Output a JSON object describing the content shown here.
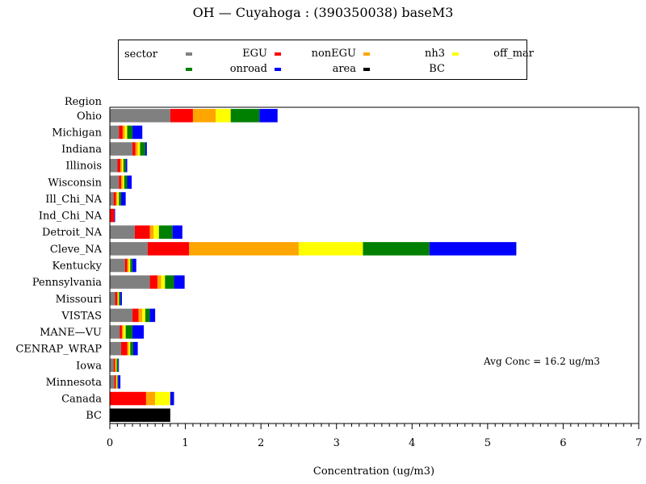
{
  "chart_data": {
    "type": "bar",
    "orientation": "horizontal",
    "stacked": true,
    "title": "OH  —  Cuyahoga : (390350038) baseM3",
    "xlabel": "Concentration  (ug/m3)",
    "ylabel": "Region",
    "xlim": [
      0,
      7
    ],
    "x_ticks": [
      "0",
      "1",
      "2",
      "3",
      "4",
      "5",
      "6",
      "7"
    ],
    "legend_title": "sector",
    "legend_position": "top",
    "annotation": "Avg Conc =  16.2 ug/m3",
    "categories": [
      "Ohio",
      "Michigan",
      "Indiana",
      "Illinois",
      "Wisconsin",
      "Ill_Chi_NA",
      "Ind_Chi_NA",
      "Detroit_NA",
      "Cleve_NA",
      "Kentucky",
      "Pennsylvania",
      "Missouri",
      "VISTAS",
      "MANE—VU",
      "CENRAP_WRAP",
      "Iowa",
      "Minnesota",
      "Canada",
      "BC"
    ],
    "series": [
      {
        "name": "EGU",
        "color": "#808080",
        "values": [
          0.8,
          0.12,
          0.3,
          0.1,
          0.12,
          0.05,
          0.0,
          0.33,
          0.5,
          0.2,
          0.53,
          0.07,
          0.3,
          0.13,
          0.15,
          0.05,
          0.06,
          0.0,
          0.0
        ]
      },
      {
        "name": "nonEGU",
        "color": "#ff0000",
        "values": [
          0.3,
          0.05,
          0.04,
          0.04,
          0.03,
          0.03,
          0.06,
          0.2,
          0.55,
          0.03,
          0.1,
          0.03,
          0.08,
          0.03,
          0.08,
          0.02,
          0.02,
          0.48,
          0.0
        ]
      },
      {
        "name": "nh3",
        "color": "#ffa500",
        "values": [
          0.3,
          0.03,
          0.03,
          0.02,
          0.02,
          0.02,
          0.0,
          0.05,
          1.45,
          0.02,
          0.05,
          0.01,
          0.05,
          0.02,
          0.02,
          0.01,
          0.01,
          0.12,
          0.0
        ]
      },
      {
        "name": "off_mar",
        "color": "#ffff00",
        "values": [
          0.2,
          0.03,
          0.03,
          0.02,
          0.02,
          0.02,
          0.0,
          0.07,
          0.85,
          0.02,
          0.05,
          0.01,
          0.04,
          0.03,
          0.02,
          0.01,
          0.01,
          0.2,
          0.0
        ]
      },
      {
        "name": "onroad",
        "color": "#008000",
        "values": [
          0.38,
          0.07,
          0.07,
          0.03,
          0.04,
          0.03,
          0.0,
          0.18,
          0.88,
          0.03,
          0.12,
          0.02,
          0.06,
          0.09,
          0.04,
          0.02,
          0.01,
          0.0,
          0.0
        ]
      },
      {
        "name": "area",
        "color": "#0000ff",
        "values": [
          0.24,
          0.13,
          0.02,
          0.02,
          0.06,
          0.06,
          0.01,
          0.13,
          1.15,
          0.05,
          0.14,
          0.02,
          0.07,
          0.15,
          0.06,
          0.01,
          0.03,
          0.05,
          0.0
        ]
      },
      {
        "name": "BC",
        "color": "#000000",
        "values": [
          0.0,
          0.0,
          0.0,
          0.0,
          0.0,
          0.0,
          0.0,
          0.0,
          0.0,
          0.0,
          0.0,
          0.0,
          0.0,
          0.0,
          0.0,
          0.0,
          0.0,
          0.0,
          0.8
        ]
      }
    ]
  }
}
